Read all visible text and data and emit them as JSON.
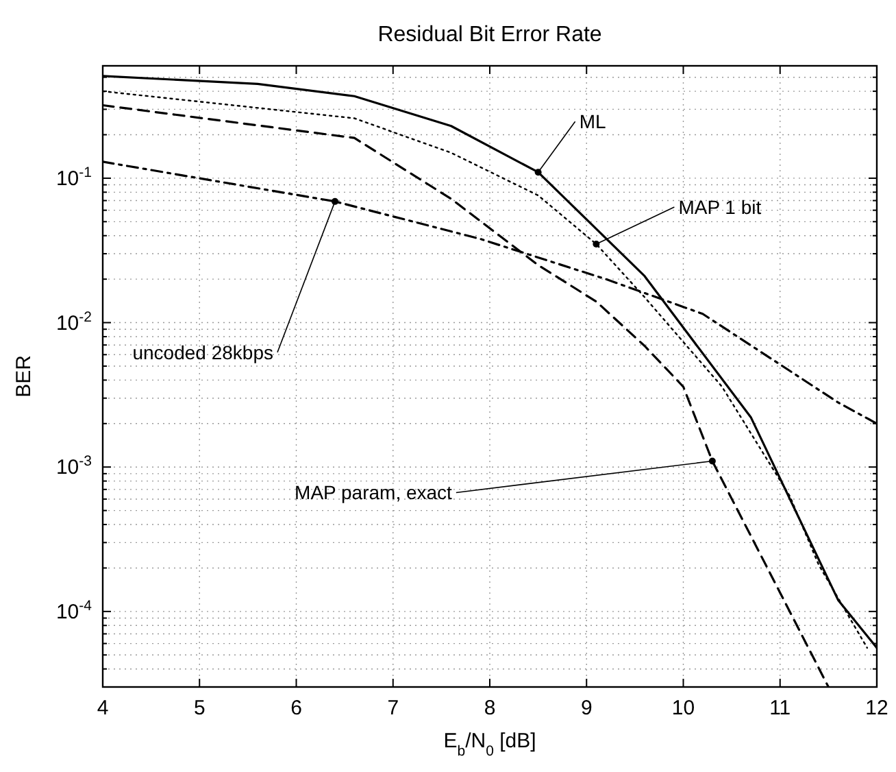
{
  "chart_data": {
    "type": "line",
    "title": "Residual Bit Error Rate",
    "xlabel": "E$_{b}$/N$_{0}$ [dB]",
    "ylabel": "BER",
    "log": "y",
    "grid": true,
    "marker": "none",
    "xlim": [
      4,
      12
    ],
    "xticks": [
      4,
      5,
      6,
      7,
      8,
      9,
      10,
      11,
      12
    ],
    "ylim": [
      3e-05,
      0.6
    ],
    "yticks": [
      {
        "value": 0.1,
        "label": "10$^{-1}$"
      },
      {
        "value": 0.01,
        "label": "10$^{-2}$"
      },
      {
        "value": 0.001,
        "label": "10$^{-3}$"
      },
      {
        "value": 0.0001,
        "label": "10$^{-4}$"
      }
    ],
    "series": [
      {
        "color": "#000000",
        "line_style": "solid",
        "x": [
          4,
          5.6,
          6.6,
          7.6,
          8.5,
          9.6,
          10.7,
          11.6,
          12
        ],
        "values": [
          0.51,
          0.45,
          0.37,
          0.23,
          0.11,
          0.021,
          0.0022,
          0.00012,
          5.6e-05
        ]
      },
      {
        "color": "#000000",
        "line_style": "dotted",
        "x": [
          4,
          6.6,
          7.6,
          8.5,
          9.1,
          9.6,
          10.4,
          11.1,
          11.4,
          11.9
        ],
        "values": [
          0.4,
          0.26,
          0.15,
          0.076,
          0.035,
          0.015,
          0.0036,
          0.00063,
          0.00021,
          5.6e-05
        ]
      },
      {
        "color": "#000000",
        "line_style": "dashed",
        "x": [
          4,
          6.6,
          7.6,
          8.5,
          9.1,
          9.6,
          10,
          10.3,
          11,
          11.5
        ],
        "values": [
          0.32,
          0.19,
          0.072,
          0.025,
          0.014,
          0.0069,
          0.0036,
          0.0011,
          0.000135,
          3e-05
        ]
      },
      {
        "color": "#000000",
        "line_style": "dashdot",
        "x": [
          4,
          6.4,
          7.9,
          9.2,
          10.2,
          11.6,
          12
        ],
        "values": [
          0.13,
          0.069,
          0.038,
          0.02,
          0.0115,
          0.0028,
          0.002
        ]
      }
    ],
    "annotations": [
      {
        "text": "ML",
        "x": 8.5,
        "y": 0.11
      },
      {
        "text": "MAP 1 bit",
        "x": 9.1,
        "y": 0.035
      },
      {
        "text": "uncoded 28kbps",
        "x": 6.4,
        "y": 0.069
      },
      {
        "text": "MAP param, exact",
        "x": 10.3,
        "y": 0.0011
      }
    ]
  }
}
